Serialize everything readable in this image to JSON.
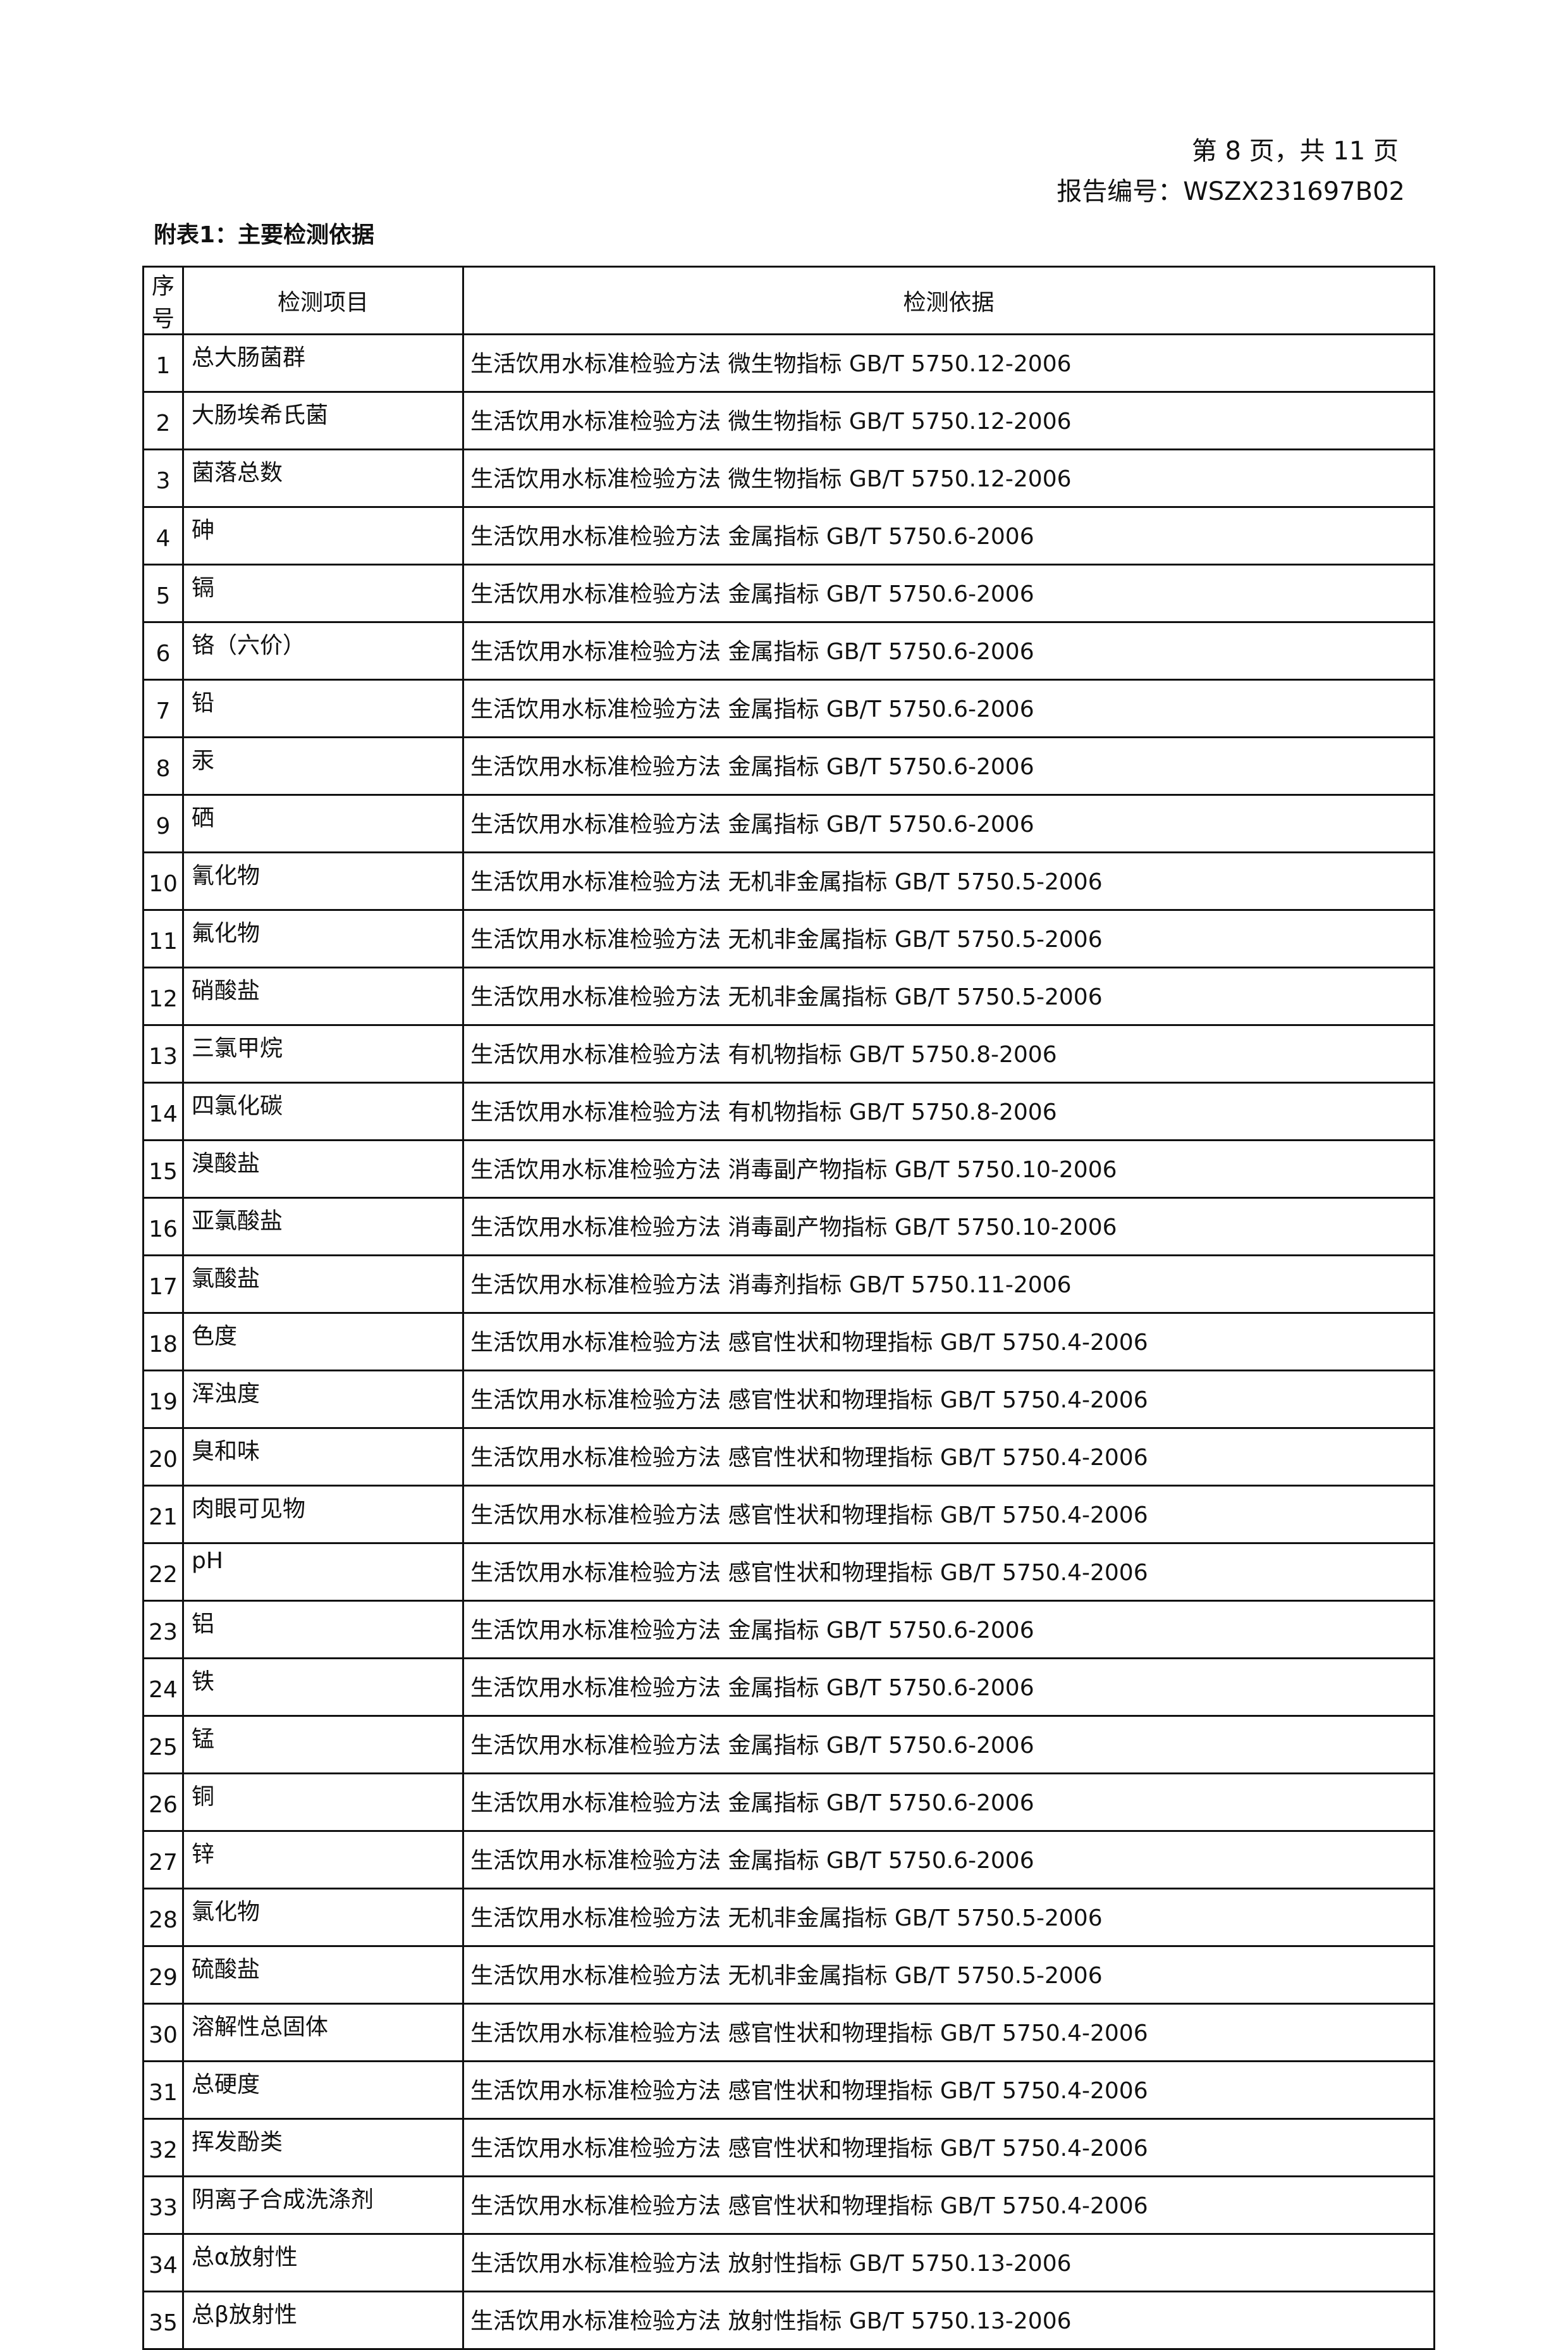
{
  "header": {
    "page_info": "第 8 页，共 11 页",
    "report_number": "报告编号：WSZX231697B02"
  },
  "title": "附表1：主要检测依据",
  "table": {
    "columns": [
      "序号",
      "检测项目",
      "检测依据"
    ],
    "rows": [
      [
        "1",
        "总大肠菌群",
        "生活饮用水标准检验方法 微生物指标 GB/T 5750.12-2006"
      ],
      [
        "2",
        "大肠埃希氏菌",
        "生活饮用水标准检验方法 微生物指标 GB/T 5750.12-2006"
      ],
      [
        "3",
        "菌落总数",
        "生活饮用水标准检验方法 微生物指标 GB/T 5750.12-2006"
      ],
      [
        "4",
        "砷",
        "生活饮用水标准检验方法 金属指标 GB/T 5750.6-2006"
      ],
      [
        "5",
        "镉",
        "生活饮用水标准检验方法 金属指标 GB/T 5750.6-2006"
      ],
      [
        "6",
        "铬（六价）",
        "生活饮用水标准检验方法 金属指标 GB/T 5750.6-2006"
      ],
      [
        "7",
        "铅",
        "生活饮用水标准检验方法 金属指标 GB/T 5750.6-2006"
      ],
      [
        "8",
        "汞",
        "生活饮用水标准检验方法 金属指标 GB/T 5750.6-2006"
      ],
      [
        "9",
        "硒",
        "生活饮用水标准检验方法 金属指标 GB/T 5750.6-2006"
      ],
      [
        "10",
        "氰化物",
        "生活饮用水标准检验方法 无机非金属指标 GB/T 5750.5-2006"
      ],
      [
        "11",
        "氟化物",
        "生活饮用水标准检验方法 无机非金属指标 GB/T 5750.5-2006"
      ],
      [
        "12",
        "硝酸盐",
        "生活饮用水标准检验方法 无机非金属指标 GB/T 5750.5-2006"
      ],
      [
        "13",
        "三氯甲烷",
        "生活饮用水标准检验方法 有机物指标 GB/T 5750.8-2006"
      ],
      [
        "14",
        "四氯化碳",
        "生活饮用水标准检验方法 有机物指标 GB/T 5750.8-2006"
      ],
      [
        "15",
        "溴酸盐",
        "生活饮用水标准检验方法 消毒副产物指标 GB/T 5750.10-2006"
      ],
      [
        "16",
        "亚氯酸盐",
        "生活饮用水标准检验方法 消毒副产物指标 GB/T 5750.10-2006"
      ],
      [
        "17",
        "氯酸盐",
        "生活饮用水标准检验方法 消毒剂指标 GB/T 5750.11-2006"
      ],
      [
        "18",
        "色度",
        "生活饮用水标准检验方法 感官性状和物理指标 GB/T 5750.4-2006"
      ],
      [
        "19",
        "浑浊度",
        "生活饮用水标准检验方法 感官性状和物理指标 GB/T 5750.4-2006"
      ],
      [
        "20",
        "臭和味",
        "生活饮用水标准检验方法 感官性状和物理指标 GB/T 5750.4-2006"
      ],
      [
        "21",
        "肉眼可见物",
        "生活饮用水标准检验方法 感官性状和物理指标 GB/T 5750.4-2006"
      ],
      [
        "22",
        "pH",
        "生活饮用水标准检验方法 感官性状和物理指标 GB/T 5750.4-2006"
      ],
      [
        "23",
        "铝",
        "生活饮用水标准检验方法 金属指标 GB/T 5750.6-2006"
      ],
      [
        "24",
        "铁",
        "生活饮用水标准检验方法 金属指标 GB/T 5750.6-2006"
      ],
      [
        "25",
        "锰",
        "生活饮用水标准检验方法 金属指标 GB/T 5750.6-2006"
      ],
      [
        "26",
        "铜",
        "生活饮用水标准检验方法 金属指标 GB/T 5750.6-2006"
      ],
      [
        "27",
        "锌",
        "生活饮用水标准检验方法 金属指标 GB/T 5750.6-2006"
      ],
      [
        "28",
        "氯化物",
        "生活饮用水标准检验方法 无机非金属指标 GB/T 5750.5-2006"
      ],
      [
        "29",
        "硫酸盐",
        "生活饮用水标准检验方法 无机非金属指标 GB/T 5750.5-2006"
      ],
      [
        "30",
        "溶解性总固体",
        "生活饮用水标准检验方法 感官性状和物理指标 GB/T 5750.4-2006"
      ],
      [
        "31",
        "总硬度",
        "生活饮用水标准检验方法 感官性状和物理指标 GB/T 5750.4-2006"
      ],
      [
        "32",
        "挥发酚类",
        "生活饮用水标准检验方法 感官性状和物理指标 GB/T 5750.4-2006"
      ],
      [
        "33",
        "阴离子合成洗涤剂",
        "生活饮用水标准检验方法 感官性状和物理指标 GB/T 5750.4-2006"
      ],
      [
        "34",
        "总α放射性",
        "生活饮用水标准检验方法 放射性指标 GB/T 5750.13-2006"
      ],
      [
        "35",
        "总β放射性",
        "生活饮用水标准检验方法 放射性指标 GB/T 5750.13-2006"
      ]
    ]
  }
}
